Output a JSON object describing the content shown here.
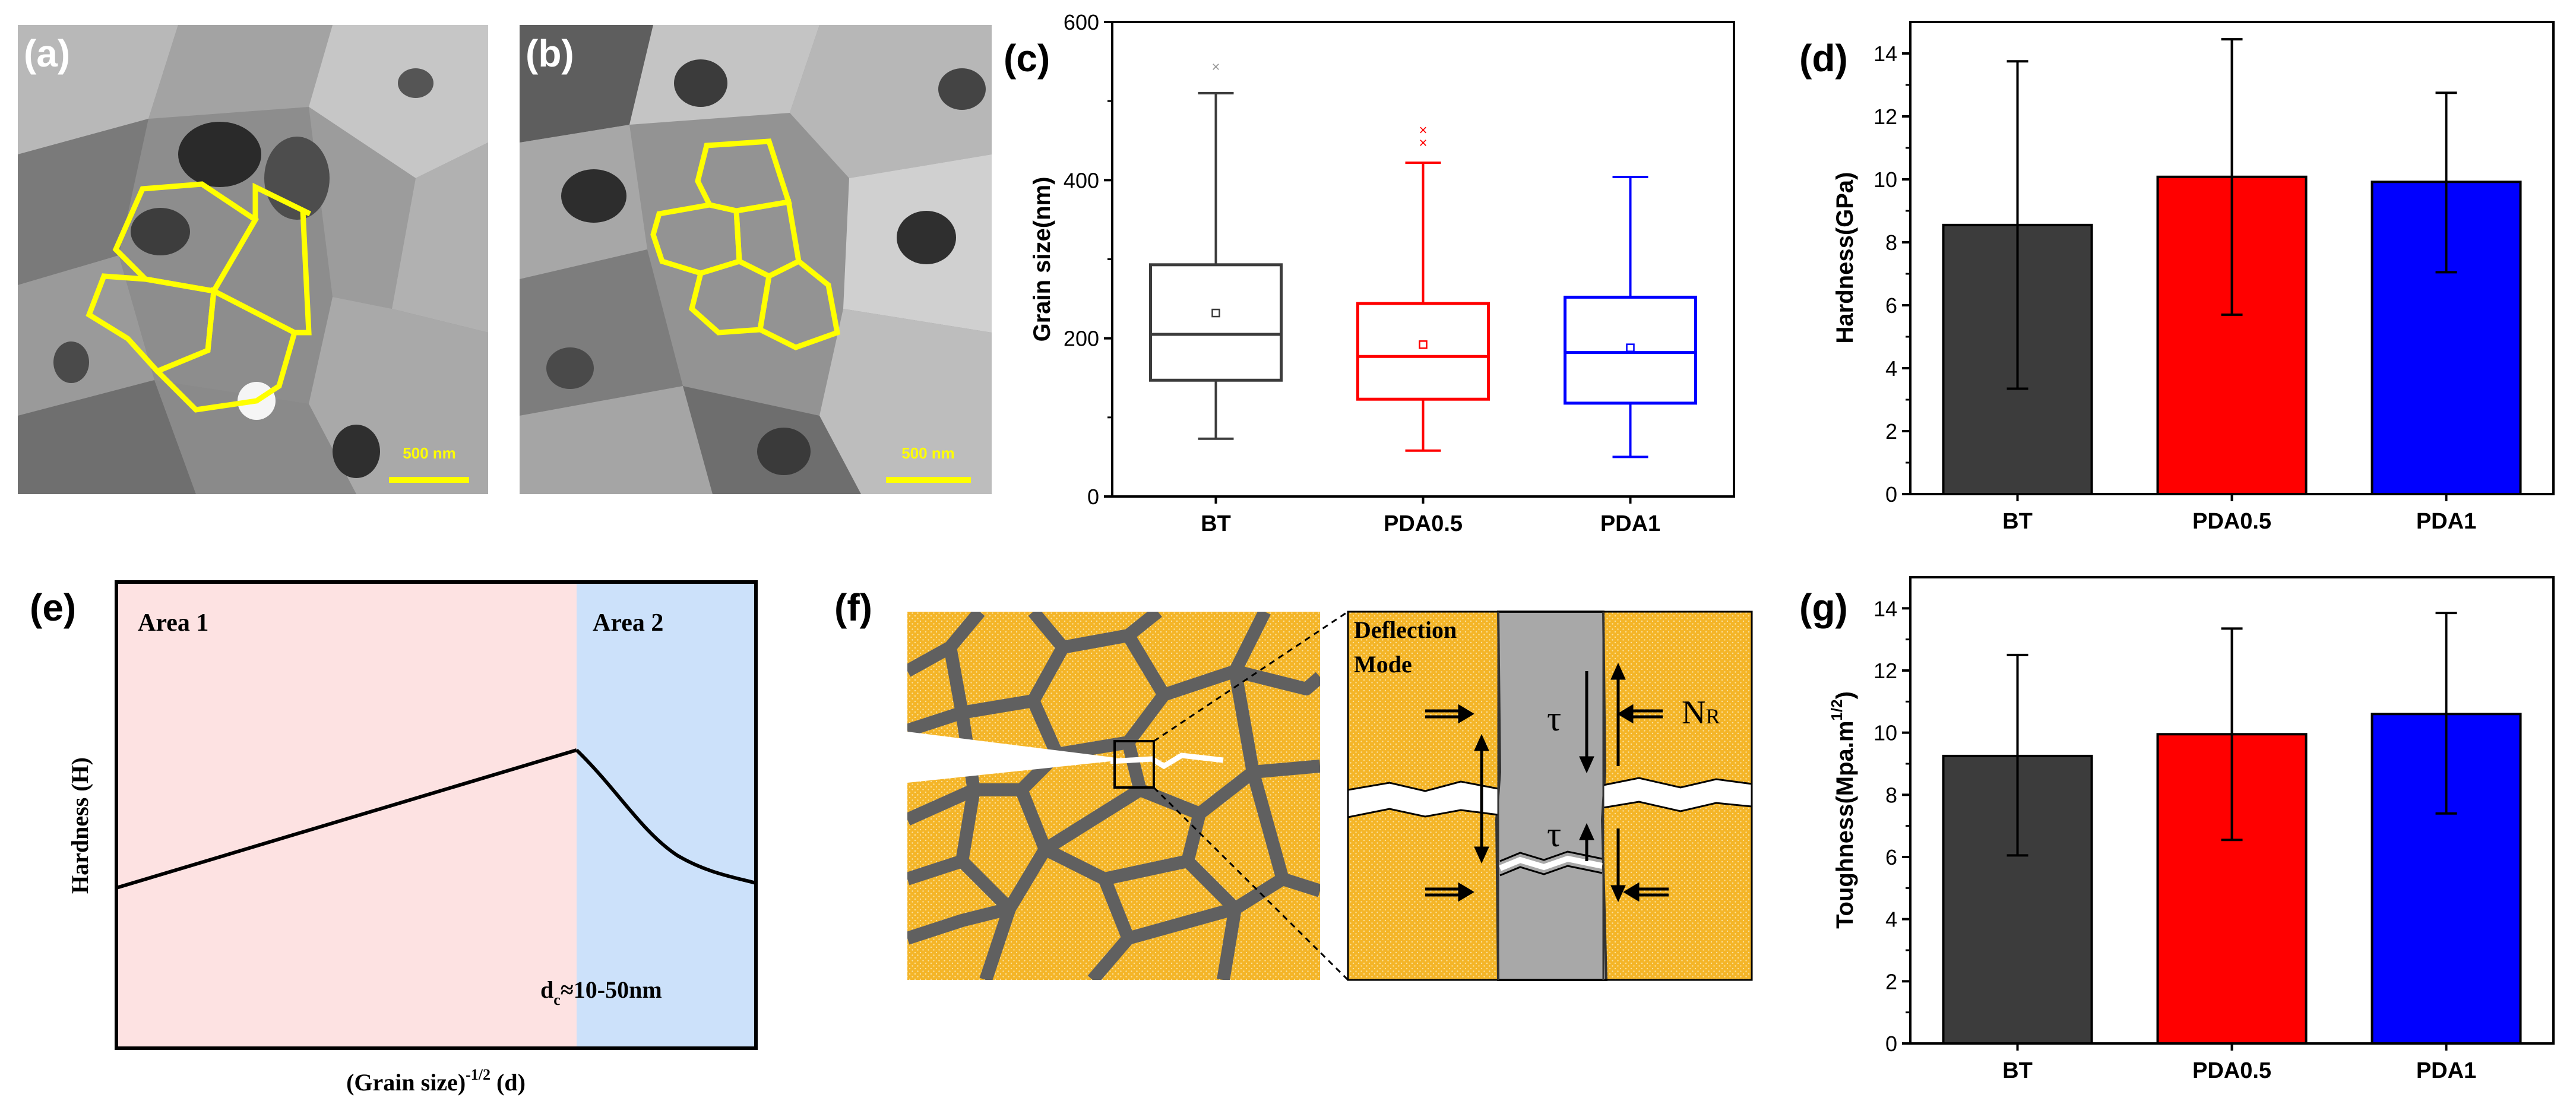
{
  "panel_labels": {
    "a": "(a)",
    "b": "(b)",
    "c": "(c)",
    "d": "(d)",
    "e": "(e)",
    "f": "(f)",
    "g": "(g)"
  },
  "micrographs": {
    "a_scale": "500 nm",
    "b_scale": "500 nm"
  },
  "colors": {
    "BT": "#3c3c3c",
    "PDA0.5": "#ff0000",
    "PDA1": "#0000ff",
    "grain": "#f4b528",
    "boundary": "#606060",
    "outline": "#ffff00",
    "area1": "#fde2e2",
    "area2": "#cce1fa"
  },
  "chart_data": [
    {
      "id": "c",
      "type": "box",
      "categories": [
        "BT",
        "PDA0.5",
        "PDA1"
      ],
      "ylabel": "Grain size(nm)",
      "ylim": [
        0,
        600
      ],
      "yticks": [
        0,
        200,
        400,
        600
      ],
      "boxes": [
        {
          "name": "BT",
          "whisker_low": 73,
          "q1": 147,
          "median": 205,
          "q3": 293,
          "whisker_high": 510,
          "mean": 232,
          "outliers": [
            544
          ]
        },
        {
          "name": "PDA0.5",
          "whisker_low": 58,
          "q1": 123,
          "median": 177,
          "q3": 244,
          "whisker_high": 422,
          "mean": 192,
          "outliers": [
            448,
            464
          ]
        },
        {
          "name": "PDA1",
          "whisker_low": 50,
          "q1": 118,
          "median": 182,
          "q3": 252,
          "whisker_high": 404,
          "mean": 188,
          "outliers": []
        }
      ]
    },
    {
      "id": "d",
      "type": "bar",
      "categories": [
        "BT",
        "PDA0.5",
        "PDA1"
      ],
      "values": [
        8.55,
        10.08,
        9.92
      ],
      "err_low": [
        3.35,
        5.7,
        7.05
      ],
      "err_high": [
        13.75,
        14.45,
        12.75
      ],
      "ylabel": "Hardness(GPa)",
      "ylim": [
        0,
        15
      ],
      "yticks": [
        0,
        2,
        4,
        6,
        8,
        10,
        12,
        14
      ]
    },
    {
      "id": "g",
      "type": "bar",
      "categories": [
        "BT",
        "PDA0.5",
        "PDA1"
      ],
      "values": [
        9.25,
        9.95,
        10.6
      ],
      "err_low": [
        6.05,
        6.55,
        7.4
      ],
      "err_high": [
        12.5,
        13.35,
        13.85
      ],
      "ylabel_main": "Toughness(Mpa.m",
      "ylabel_sup": "1/2",
      "ylabel_end": ")",
      "ylim": [
        0,
        15
      ],
      "yticks": [
        0,
        2,
        4,
        6,
        8,
        10,
        12,
        14
      ]
    },
    {
      "id": "e",
      "type": "line",
      "area1_label": "Area 1",
      "area2_label": "Area 2",
      "ylabel": "Hardness (H)",
      "xlabel_main": "(Grain size)",
      "xlabel_sup": "-1/2",
      "xlabel_end": " (d)",
      "dc_main": "d",
      "dc_sub": "c",
      "dc_rest": "≈10-50nm"
    }
  ],
  "panel_f": {
    "mode_line1": "Deflection",
    "mode_line2": "Mode",
    "tau": "τ",
    "nr_main": "N",
    "nr_sub": "R"
  }
}
